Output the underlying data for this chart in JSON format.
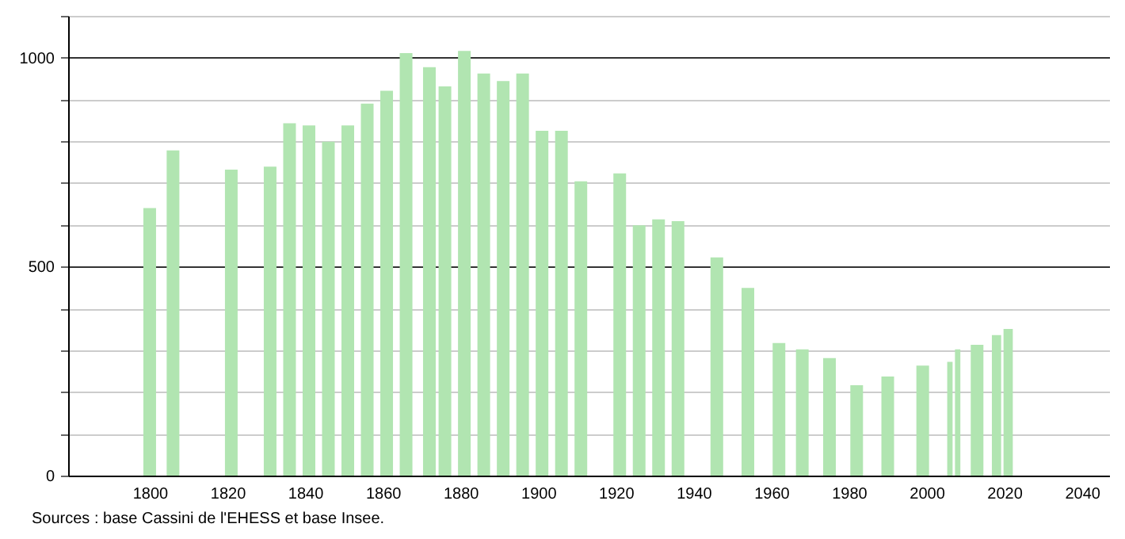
{
  "chart_data": {
    "type": "bar",
    "x": [
      1800,
      1806,
      1821,
      1831,
      1836,
      1841,
      1846,
      1851,
      1856,
      1861,
      1866,
      1872,
      1876,
      1881,
      1886,
      1891,
      1896,
      1901,
      1906,
      1911,
      1921,
      1926,
      1931,
      1936,
      1946,
      1954,
      1962,
      1968,
      1975,
      1982,
      1990,
      1999,
      2006,
      2008,
      2013,
      2018,
      2021
    ],
    "values": [
      640,
      778,
      732,
      739,
      843,
      838,
      799,
      838,
      890,
      921,
      1011,
      977,
      931,
      1016,
      962,
      944,
      962,
      825,
      825,
      704,
      723,
      599,
      613,
      609,
      522,
      449,
      317,
      302,
      281,
      216,
      237,
      263,
      272,
      302,
      313,
      336,
      351
    ],
    "color": "#b1e5b1",
    "xlim": [
      1779,
      2047
    ],
    "xticks": [
      1800,
      1820,
      1840,
      1860,
      1880,
      1900,
      1920,
      1940,
      1960,
      1980,
      2000,
      2020,
      2040
    ],
    "ylim": [
      0,
      1100
    ],
    "yticks": [
      0,
      {
        "value": 100,
        "label": null
      },
      {
        "value": 200,
        "label": null
      },
      {
        "value": 300,
        "label": null
      },
      {
        "value": 400,
        "label": null
      },
      500,
      {
        "value": 600,
        "label": null
      },
      {
        "value": 700,
        "label": null
      },
      {
        "value": 800,
        "label": null
      },
      {
        "value": 900,
        "label": null
      },
      1000,
      {
        "value": 1100,
        "label": null
      }
    ],
    "grid": "y",
    "annotations": [
      "Sources : base Cassini de l'EHESS et base Insee."
    ]
  }
}
